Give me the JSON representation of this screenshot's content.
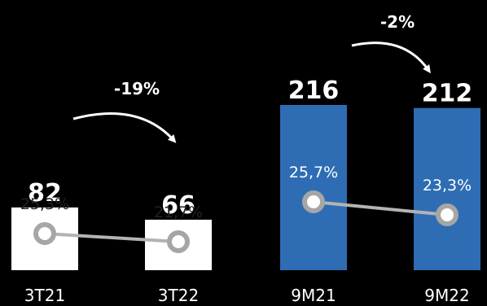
{
  "chart_data": {
    "type": "bar",
    "categories": [
      "3T21",
      "3T22",
      "9M21",
      "9M22"
    ],
    "values": [
      82,
      66,
      216,
      212
    ],
    "value_labels": [
      "82",
      "66",
      "216",
      "212"
    ],
    "margin_percent": [
      25.3,
      21.7,
      25.7,
      23.3
    ],
    "margin_labels": [
      "25,3%",
      "21,7%",
      "25,7%",
      "23,3%"
    ],
    "changes": [
      {
        "from": "3T21",
        "to": "3T22",
        "label": "-19%"
      },
      {
        "from": "9M21",
        "to": "9M22",
        "label": "-2%"
      }
    ],
    "bar_colors": [
      "#ffffff",
      "#ffffff",
      "#2e6db4",
      "#2e6db4"
    ],
    "colors": {
      "background": "#000000",
      "connector": "#b3b3b3",
      "marker_ring": "#a6a6a6",
      "marker_fill": "#ffffff"
    },
    "grid": false,
    "legend": "none"
  }
}
